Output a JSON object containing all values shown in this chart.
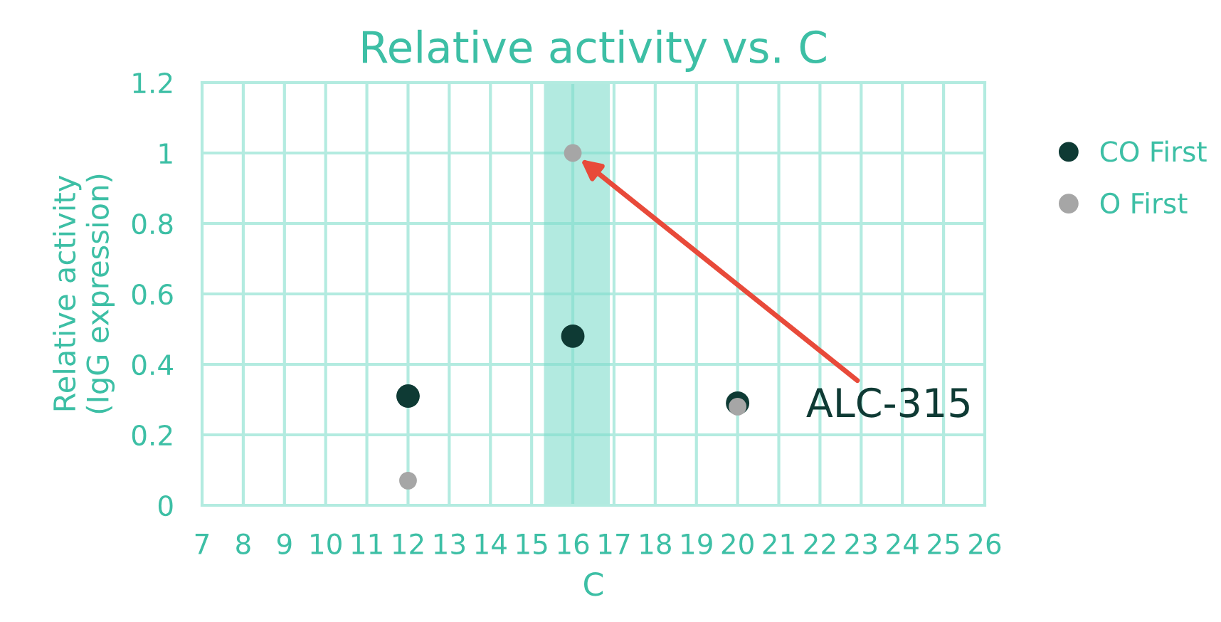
{
  "chart_data": {
    "type": "scatter",
    "title": "Relative activity vs. C",
    "xlabel": "C",
    "ylabel": "Relative activity\n(IgG expression)",
    "series": [
      {
        "name": "CO First",
        "color": "#0e3a34",
        "x": [
          12,
          16,
          20
        ],
        "values": [
          0.31,
          0.48,
          0.29
        ]
      },
      {
        "name": "O First",
        "color": "#a6a6a6",
        "x": [
          12,
          16,
          20
        ],
        "values": [
          0.07,
          1.0,
          0.28
        ]
      }
    ],
    "xlim": [
      7,
      26
    ],
    "xticks": [
      7,
      8,
      9,
      10,
      11,
      12,
      13,
      14,
      15,
      16,
      17,
      18,
      19,
      20,
      21,
      22,
      23,
      24,
      25,
      26
    ],
    "ylim": [
      0,
      1.2
    ],
    "yticks": [
      0,
      0.2,
      0.4,
      0.6,
      0.8,
      1,
      1.2
    ],
    "bands": [
      {
        "axis": "x",
        "from": 15.3,
        "to": 16.9,
        "color": "#7fdccb"
      }
    ],
    "annotations": [
      "ALC-315"
    ],
    "grid": true,
    "legend": "right",
    "marker": "circle"
  }
}
